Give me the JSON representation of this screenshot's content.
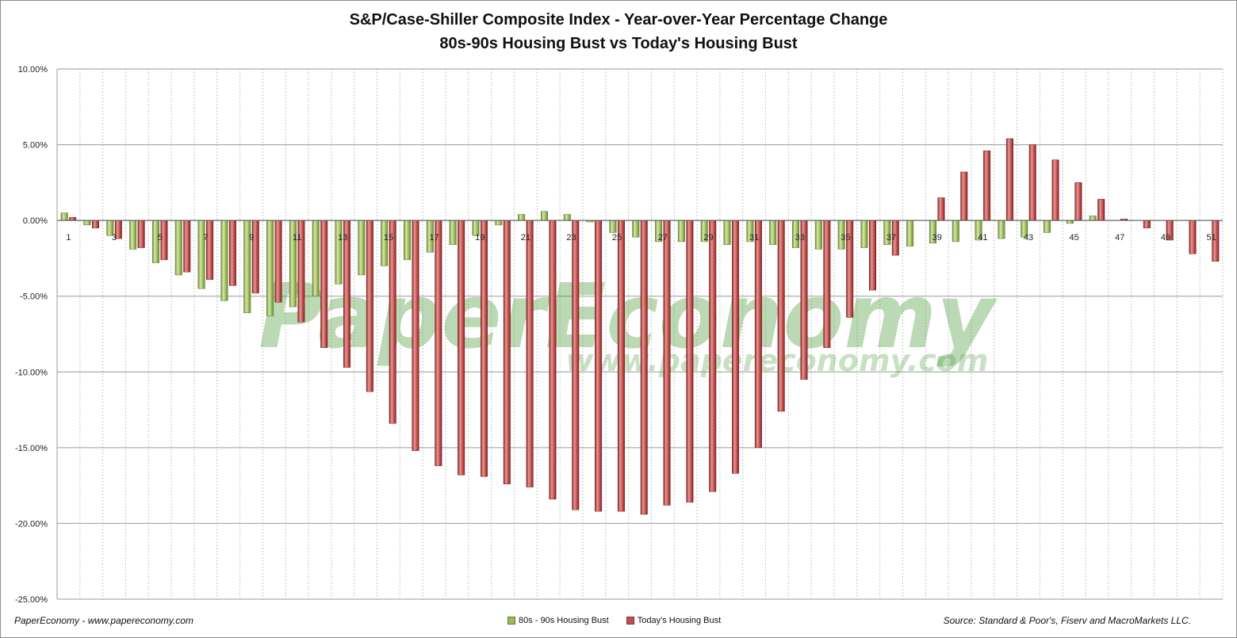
{
  "chart_data": {
    "type": "bar",
    "title": "S&P/Case-Shiller Composite Index - Year-over-Year Percentage Change",
    "subtitle": "80s-90s Housing Bust vs Today's Housing Bust",
    "xlabel": "",
    "ylabel": "",
    "ylim": [
      -25,
      10
    ],
    "yticks": [
      "10.00%",
      "5.00%",
      "0.00%",
      "-5.00%",
      "-10.00%",
      "-15.00%",
      "-20.00%",
      "-25.00%"
    ],
    "categories": [
      1,
      2,
      3,
      4,
      5,
      6,
      7,
      8,
      9,
      10,
      11,
      12,
      13,
      14,
      15,
      16,
      17,
      18,
      19,
      20,
      21,
      22,
      23,
      24,
      25,
      26,
      27,
      28,
      29,
      30,
      31,
      32,
      33,
      34,
      35,
      36,
      37,
      38,
      39,
      40,
      41,
      42,
      43,
      44,
      45,
      46,
      47,
      48,
      49,
      50,
      51
    ],
    "x_tick_labels": [
      "1",
      "3",
      "5",
      "7",
      "9",
      "11",
      "13",
      "15",
      "17",
      "19",
      "21",
      "23",
      "25",
      "27",
      "29",
      "31",
      "33",
      "35",
      "37",
      "39",
      "41",
      "43",
      "45",
      "47",
      "49",
      "51"
    ],
    "grid": "horizontal major gridlines, vertical dashed category gridlines",
    "legend_position": "bottom",
    "series": [
      {
        "name": "80s - 90s Housing Bust",
        "color": "#9bbb59",
        "values": [
          0.5,
          -0.3,
          -1.0,
          -1.9,
          -2.8,
          -3.6,
          -4.5,
          -5.3,
          -6.1,
          -6.3,
          -5.7,
          -5.0,
          -4.2,
          -3.6,
          -3.0,
          -2.6,
          -2.1,
          -1.6,
          -1.0,
          -0.3,
          0.4,
          0.6,
          0.4,
          -0.1,
          -0.8,
          -1.1,
          -1.4,
          -1.4,
          -1.4,
          -1.6,
          -1.4,
          -1.6,
          -1.8,
          -1.9,
          -1.9,
          -1.8,
          -1.6,
          -1.7,
          -1.5,
          -1.4,
          -1.3,
          -1.2,
          -1.1,
          -0.8,
          -0.2,
          0.3,
          0.0,
          0.0,
          0.0,
          0.0,
          0.0
        ]
      },
      {
        "name": "Today's Housing Bust",
        "color": "#c0504d",
        "values": [
          0.2,
          -0.5,
          -1.2,
          -1.8,
          -2.6,
          -3.4,
          -3.9,
          -4.3,
          -4.8,
          -5.4,
          -6.7,
          -8.4,
          -9.7,
          -11.3,
          -13.4,
          -15.2,
          -16.2,
          -16.8,
          -16.9,
          -17.4,
          -17.6,
          -18.4,
          -19.1,
          -19.2,
          -19.2,
          -19.4,
          -18.8,
          -18.6,
          -17.9,
          -16.7,
          -15.0,
          -12.6,
          -10.5,
          -8.4,
          -6.4,
          -4.6,
          -2.3,
          0.0,
          1.5,
          3.2,
          4.6,
          5.4,
          5.0,
          4.0,
          2.5,
          1.4,
          0.1,
          -0.5,
          -1.3,
          -2.2,
          -2.7
        ]
      }
    ]
  },
  "watermark": {
    "brand": "PaperEconomy",
    "url": "www.papereconomy.com"
  },
  "footer": {
    "left": "PaperEconomy - www.papereconomy.com",
    "right": "Source: Standard & Poor's, Fiserv and MacroMarkets LLC."
  }
}
